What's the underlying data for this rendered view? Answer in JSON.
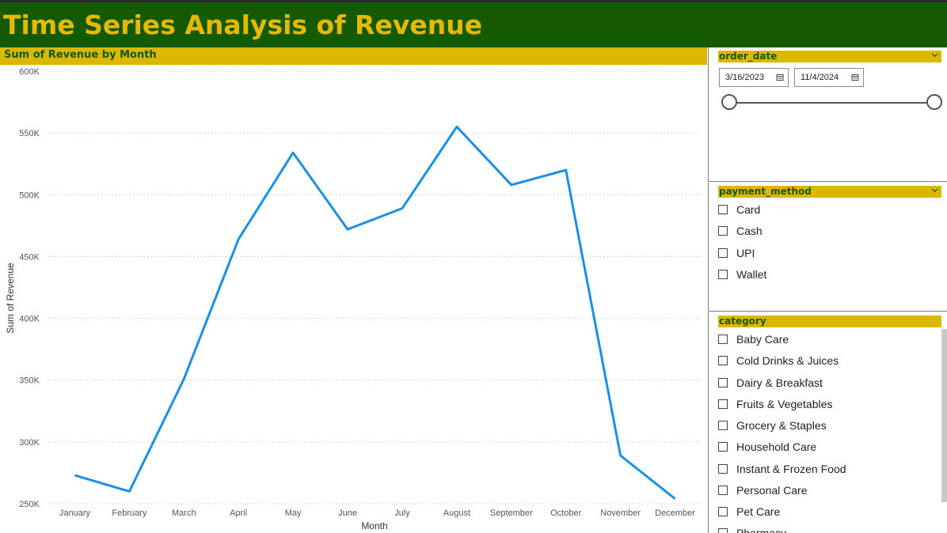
{
  "header": {
    "title": "Time Series Analysis of Revenue"
  },
  "chart_header": {
    "title": "Sum of Revenue by Month"
  },
  "colors": {
    "header_bg": "#145a00",
    "title_text": "#e6b800",
    "accent_bar": "#dbb700",
    "line": "#1a8fe8"
  },
  "chart_data": {
    "type": "line",
    "title": "Sum of Revenue by Month",
    "xlabel": "Month",
    "ylabel": "Sum of Revenue",
    "categories": [
      "January",
      "February",
      "March",
      "April",
      "May",
      "June",
      "July",
      "August",
      "September",
      "October",
      "November",
      "December"
    ],
    "values": [
      273000,
      260000,
      351000,
      464000,
      534000,
      472000,
      489000,
      555000,
      508000,
      520000,
      289000,
      254000
    ],
    "ylim": [
      250000,
      600000
    ],
    "yticks": [
      250000,
      300000,
      350000,
      400000,
      450000,
      500000,
      550000,
      600000
    ],
    "ytick_labels": [
      "250K",
      "300K",
      "350K",
      "400K",
      "450K",
      "500K",
      "550K",
      "600K"
    ],
    "grid": true,
    "grid_style": "dotted horizontal"
  },
  "slicers": {
    "order_date": {
      "title": "order_date",
      "start": "3/16/2023",
      "end": "11/4/2024",
      "start_icon": "calendar-icon",
      "end_icon": "calendar-icon"
    },
    "payment_method": {
      "title": "payment_method",
      "items": [
        "Card",
        "Cash",
        "UPI",
        "Wallet"
      ]
    },
    "category": {
      "title": "category",
      "items": [
        "Baby Care",
        "Cold Drinks & Juices",
        "Dairy & Breakfast",
        "Fruits & Vegetables",
        "Grocery & Staples",
        "Household Care",
        "Instant & Frozen Food",
        "Personal Care",
        "Pet Care",
        "Pharmacy"
      ]
    }
  }
}
